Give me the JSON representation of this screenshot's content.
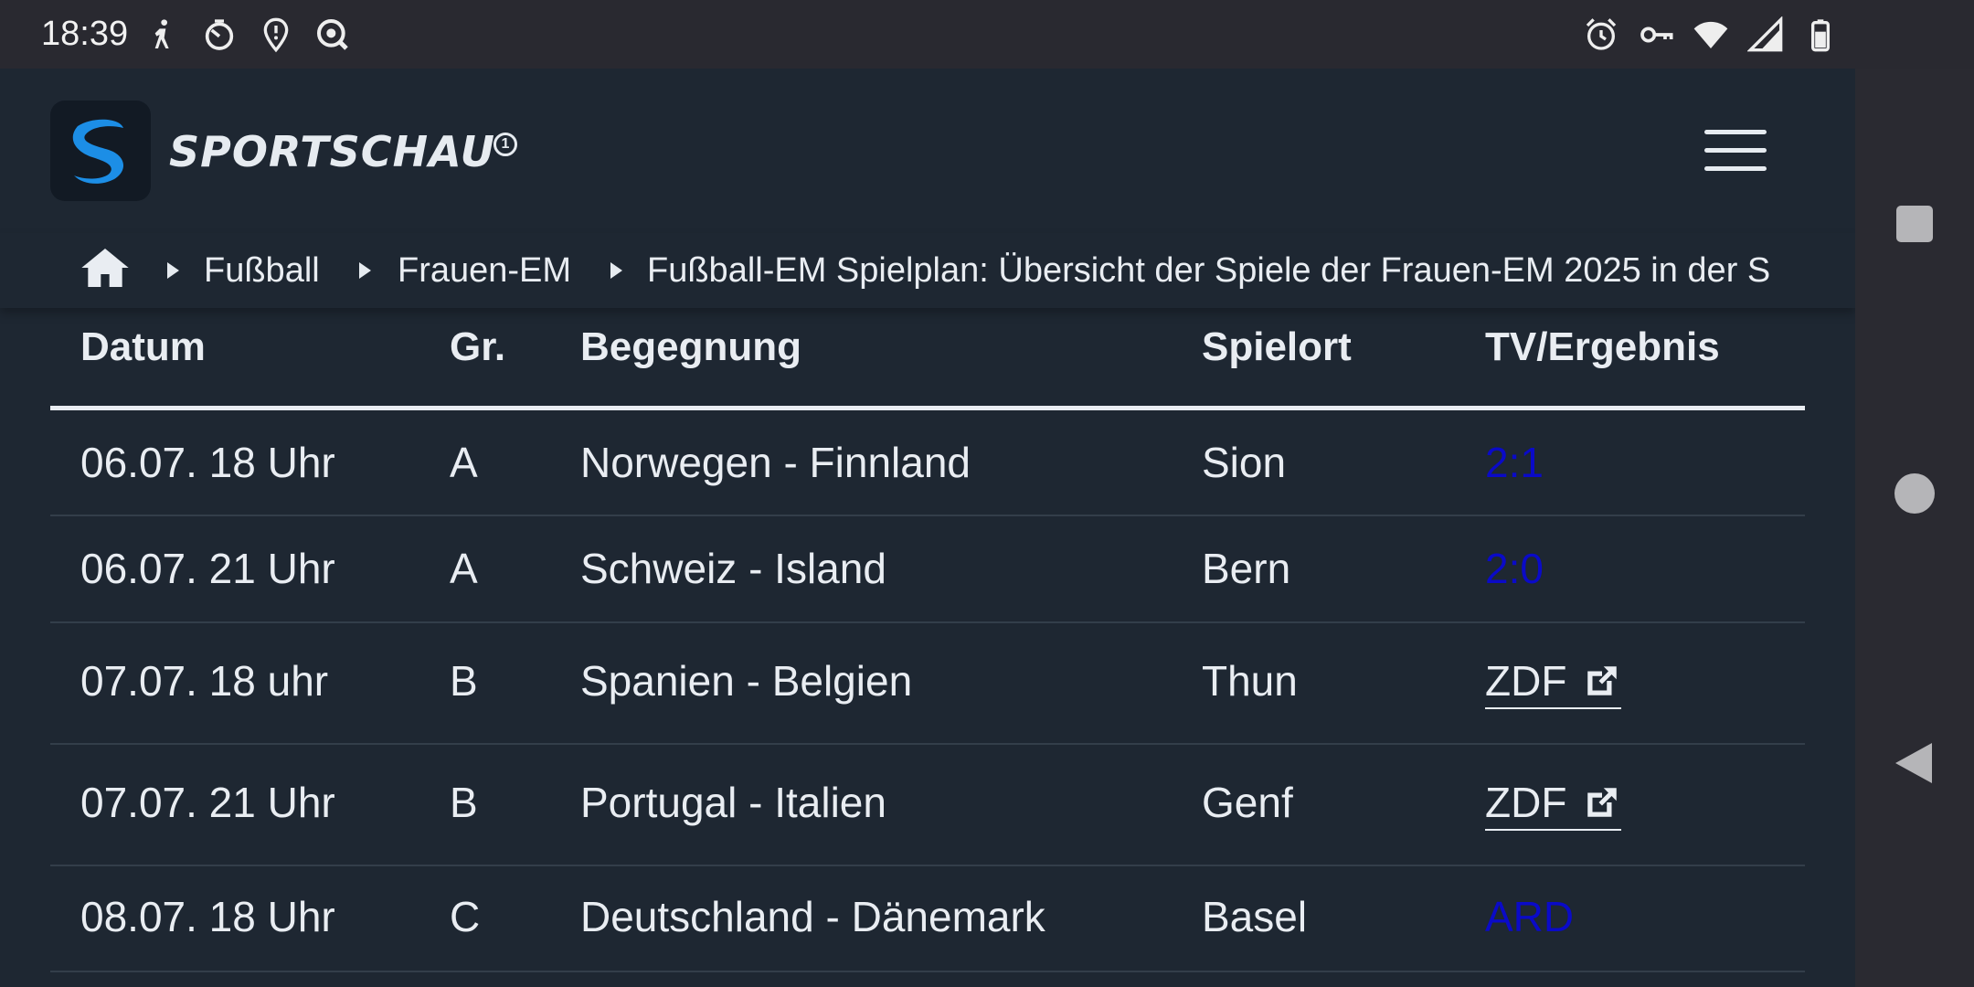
{
  "status_bar": {
    "time": "18:39",
    "left_icons": [
      "walking-icon",
      "timer-icon",
      "location-shield-icon",
      "search-badge-icon"
    ],
    "right_icons": [
      "alarm-icon",
      "vpn-key-icon",
      "wifi-icon",
      "cellular-signal-icon",
      "battery-icon"
    ]
  },
  "header": {
    "logo_text": "SPORTSCHAU",
    "logo_badge": "1",
    "menu_icon": "hamburger-menu-icon"
  },
  "breadcrumb": {
    "items": [
      "Fußball",
      "Frauen-EM",
      "Fußball-EM Spielplan: Übersicht der Spiele der Frauen-EM 2025 in der S"
    ]
  },
  "table": {
    "headers": [
      "Datum",
      "Gr.",
      "Begegnung",
      "Spielort",
      "TV/Ergebnis"
    ],
    "rows": [
      {
        "date": "06.07. 18 Uhr",
        "group": "A",
        "match": "Norwegen - Finnland",
        "venue": "Sion",
        "tv": "2:1",
        "tv_type": "result"
      },
      {
        "date": "06.07. 21 Uhr",
        "group": "A",
        "match": "Schweiz - Island",
        "venue": "Bern",
        "tv": "2:0",
        "tv_type": "result"
      },
      {
        "date": "07.07. 18 uhr",
        "group": "B",
        "match": "Spanien - Belgien",
        "venue": "Thun",
        "tv": "ZDF",
        "tv_type": "external"
      },
      {
        "date": "07.07. 21 Uhr",
        "group": "B",
        "match": "Portugal - Italien",
        "venue": "Genf",
        "tv": "ZDF",
        "tv_type": "external"
      },
      {
        "date": "08.07. 18 Uhr",
        "group": "C",
        "match": "Deutschland - Dänemark",
        "venue": "Basel",
        "tv": "ARD",
        "tv_type": "result"
      }
    ]
  },
  "colors": {
    "background": "#1e2732",
    "link_blue": "#0a0ac8",
    "brand_blue": "#1c8ee6"
  }
}
